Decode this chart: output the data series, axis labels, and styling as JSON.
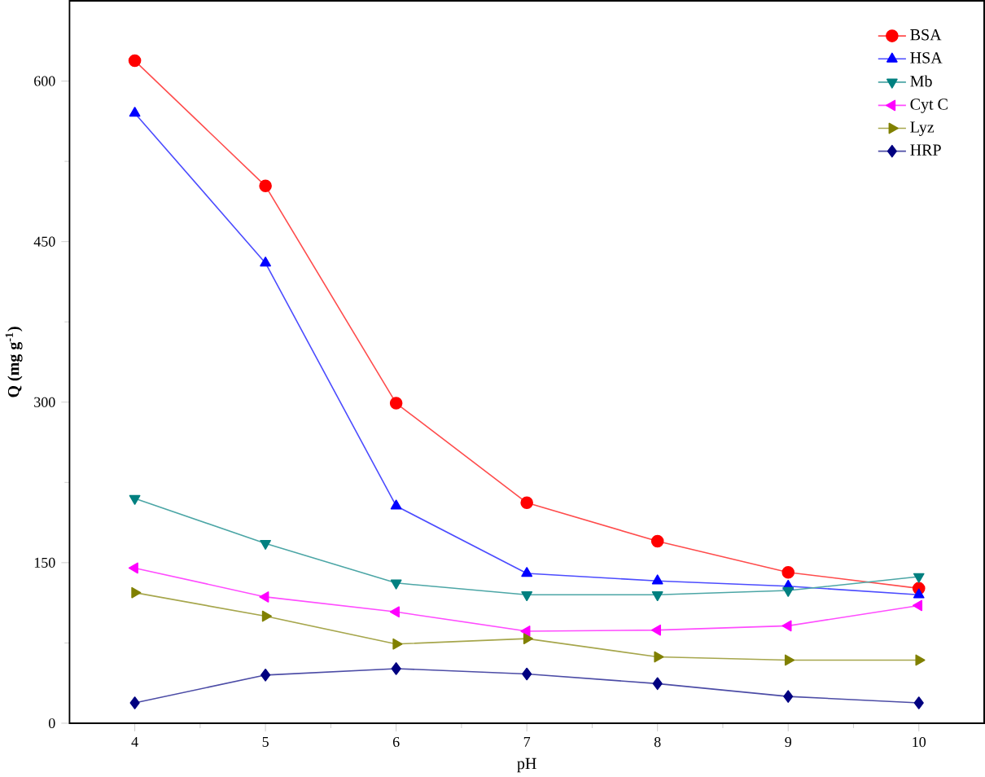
{
  "chart_data": {
    "type": "line",
    "xlabel": "pH",
    "ylabel": "**Q (mg g$^{-1}$)**",
    "x": [
      4,
      5,
      6,
      7,
      8,
      9,
      10
    ],
    "xlim": [
      3.5,
      10.5
    ],
    "xticks": [
      4,
      5,
      6,
      7,
      8,
      9,
      10
    ],
    "ylim": [
      0,
      675
    ],
    "yticks": [
      0,
      150,
      300,
      450,
      600
    ],
    "legend": "top right",
    "grid": false,
    "series": [
      {
        "name": "BSA",
        "color": "#ff0000",
        "marker": "circle",
        "values": [
          619,
          502,
          299,
          206,
          170,
          141,
          126
        ]
      },
      {
        "name": "HSA",
        "color": "#0000ff",
        "marker": "triangle",
        "values": [
          570,
          430,
          203,
          140,
          133,
          128,
          120
        ]
      },
      {
        "name": "Mb",
        "color": "#008080",
        "marker": "triangle-down",
        "values": [
          210,
          168,
          131,
          120,
          120,
          124,
          137
        ]
      },
      {
        "name": "Cyt C",
        "color": "#ff00ff",
        "marker": "triangle-left",
        "values": [
          145,
          118,
          104,
          86,
          87,
          91,
          110
        ]
      },
      {
        "name": "Lyz",
        "color": "#808000",
        "marker": "triangle-right",
        "values": [
          122,
          100,
          74,
          79,
          62,
          59,
          59
        ]
      },
      {
        "name": "HRP",
        "color": "#000080",
        "marker": "diamond",
        "values": [
          19,
          45,
          51,
          46,
          37,
          25,
          19
        ]
      }
    ]
  }
}
